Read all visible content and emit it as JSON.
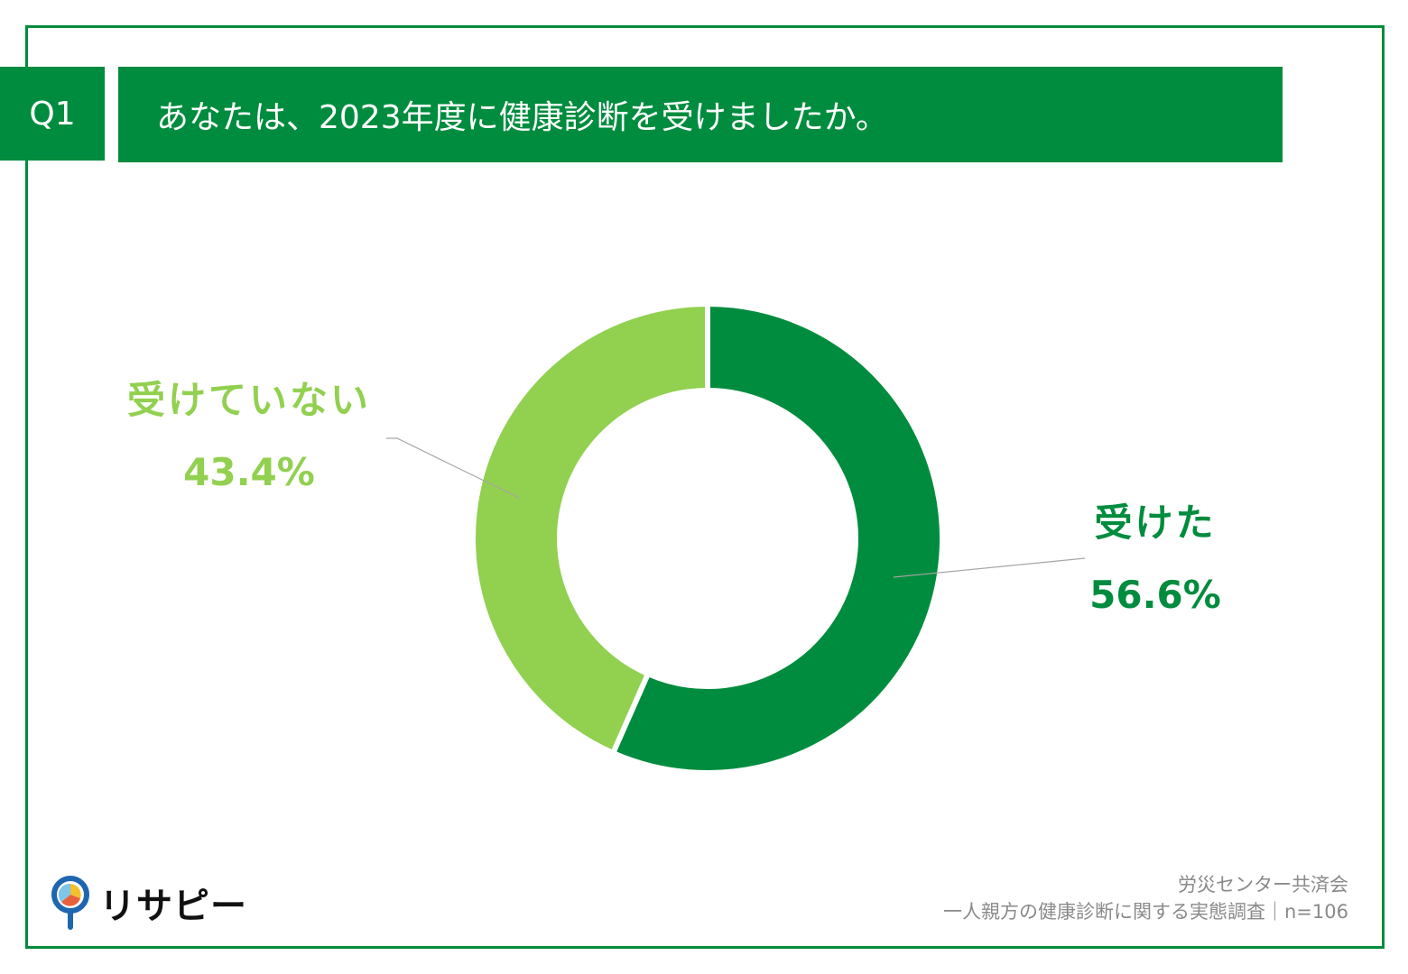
{
  "question": {
    "number": "Q1",
    "text": "あなたは、2023年度に健康診断を受けましたか。"
  },
  "colors": {
    "accent": "#008c3e",
    "light_green": "#92d050",
    "leader_line": "#a6a6a6"
  },
  "chart_data": {
    "type": "pie",
    "donut": true,
    "title": "",
    "series": [
      {
        "name": "受けた",
        "value": 56.6,
        "value_label": "56.6%",
        "color": "#008c3e"
      },
      {
        "name": "受けていない",
        "value": 43.4,
        "value_label": "43.4%",
        "color": "#92d050"
      }
    ]
  },
  "footer": {
    "line1": "労災センター共済会",
    "line2": "一人親方の健康診断に関する実態調査｜n=106"
  },
  "logo": {
    "text": "リサピー",
    "icon": "pin-pie-icon"
  }
}
